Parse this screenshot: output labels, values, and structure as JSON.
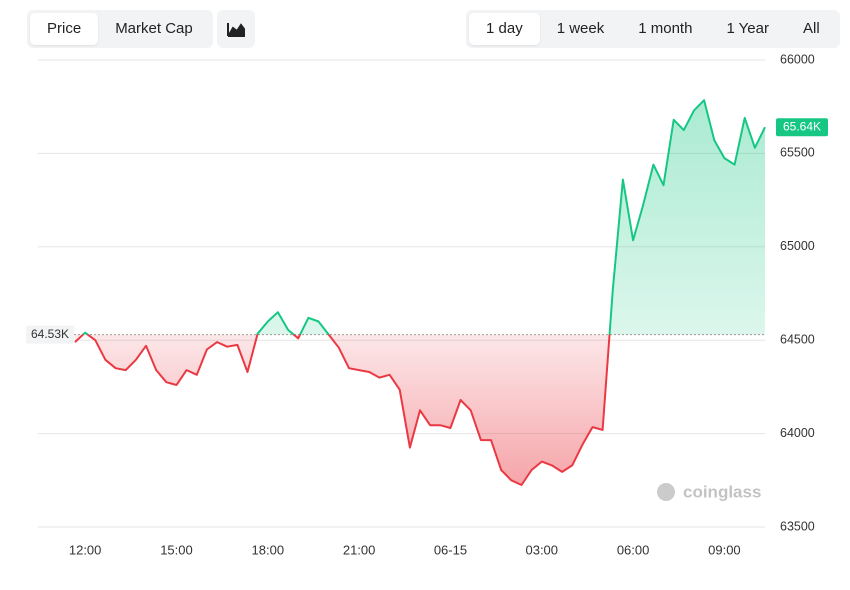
{
  "controls": {
    "metric_tabs": [
      "Price",
      "Market Cap"
    ],
    "range_tabs": [
      "1 day",
      "1 week",
      "1 month",
      "1 Year",
      "All"
    ]
  },
  "watermark": "coinglass",
  "chart_data": {
    "type": "line",
    "x": [
      "11:40",
      "12:00",
      "12:20",
      "12:40",
      "13:00",
      "13:20",
      "13:40",
      "14:00",
      "14:20",
      "14:40",
      "15:00",
      "15:20",
      "15:40",
      "16:00",
      "16:20",
      "16:40",
      "17:00",
      "17:20",
      "17:40",
      "18:00",
      "18:20",
      "18:40",
      "19:00",
      "19:20",
      "19:40",
      "20:00",
      "20:20",
      "20:40",
      "21:00",
      "21:20",
      "21:40",
      "22:00",
      "22:20",
      "22:40",
      "23:00",
      "23:20",
      "23:40",
      "00:00",
      "00:20",
      "00:40",
      "01:00",
      "01:20",
      "01:40",
      "02:00",
      "02:20",
      "02:40",
      "03:00",
      "03:20",
      "03:40",
      "04:00",
      "04:20",
      "04:40",
      "05:00",
      "05:20",
      "05:40",
      "06:00",
      "06:20",
      "06:40",
      "07:00",
      "07:20",
      "07:40",
      "08:00",
      "08:20",
      "08:40",
      "09:00",
      "09:20",
      "09:40",
      "10:00",
      "10:20"
    ],
    "values": [
      64490,
      64540,
      64500,
      64395,
      64350,
      64340,
      64395,
      64470,
      64340,
      64275,
      64260,
      64340,
      64315,
      64450,
      64490,
      64465,
      64475,
      64330,
      64535,
      64600,
      64650,
      64555,
      64510,
      64620,
      64600,
      64530,
      64460,
      64350,
      64340,
      64330,
      64300,
      64315,
      64235,
      63925,
      64125,
      64045,
      64045,
      64030,
      64180,
      64125,
      63965,
      63965,
      63805,
      63750,
      63725,
      63805,
      63850,
      63830,
      63795,
      63830,
      63940,
      64035,
      64020,
      64770,
      65360,
      65035,
      65225,
      65440,
      65330,
      65680,
      65625,
      65730,
      65785,
      65570,
      65475,
      65440,
      65690,
      65530,
      65640
    ],
    "up_color": "#16c784",
    "down_color": "#ea3943",
    "baseline": {
      "value": 64530,
      "label": "64.53K"
    },
    "last_price": {
      "value": 65640,
      "label": "65.64K"
    },
    "ylim": [
      63500,
      66000
    ],
    "yticks": [
      63500,
      64000,
      64500,
      65000,
      65500,
      66000
    ],
    "xticks": [
      "12:00",
      "15:00",
      "18:00",
      "21:00",
      {
        "value": "00:00",
        "label": "06-15"
      },
      "03:00",
      "06:00",
      "09:00"
    ],
    "grid": true
  }
}
